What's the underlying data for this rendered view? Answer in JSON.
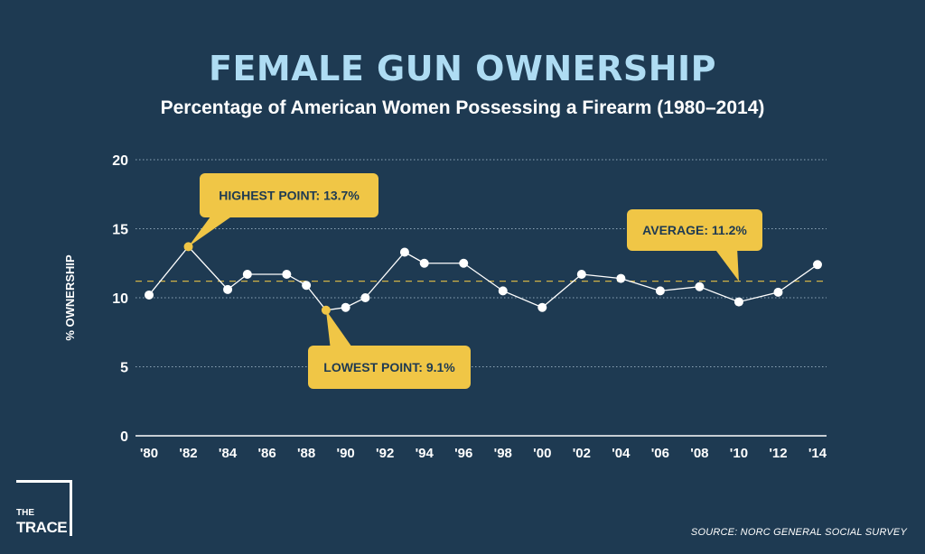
{
  "header": {
    "title": "FEMALE GUN OWNERSHIP",
    "subtitle": "Percentage of American Women Possessing a Firearm (1980–2014)"
  },
  "chart_data": {
    "type": "line",
    "ylabel": "% OWNERSHIP",
    "ylim": [
      0,
      20
    ],
    "yticks": [
      0,
      5,
      10,
      15,
      20
    ],
    "xlim": [
      1980,
      2014
    ],
    "xtick_values": [
      1980,
      1982,
      1984,
      1986,
      1988,
      1990,
      1992,
      1994,
      1996,
      1998,
      2000,
      2002,
      2004,
      2006,
      2008,
      2010,
      2012,
      2014
    ],
    "xtick_labels": [
      "'80",
      "'82",
      "'84",
      "'86",
      "'88",
      "'90",
      "'92",
      "'94",
      "'96",
      "'98",
      "'00",
      "'02",
      "'04",
      "'06",
      "'08",
      "'10",
      "'12",
      "'14"
    ],
    "grid": true,
    "series": [
      {
        "x": [
          1980,
          1982,
          1984,
          1985,
          1987,
          1988,
          1989,
          1990,
          1991,
          1993,
          1994,
          1996,
          1998,
          2000,
          2002,
          2004,
          2006,
          2008,
          2010,
          2012,
          2014
        ],
        "values": [
          10.2,
          13.7,
          10.6,
          11.7,
          11.7,
          10.9,
          9.1,
          9.3,
          10.0,
          13.3,
          12.5,
          12.5,
          10.5,
          9.3,
          11.7,
          11.4,
          10.5,
          10.8,
          9.7,
          10.4,
          12.4
        ]
      }
    ],
    "average": 11.2,
    "annotations": {
      "highest": {
        "x": 1982,
        "y": 13.7,
        "label": "HIGHEST POINT: 13.7%"
      },
      "lowest": {
        "x": 1989,
        "y": 9.1,
        "label": "LOWEST POINT: 9.1%"
      },
      "average": {
        "x": 2010,
        "y": 11.2,
        "label": "AVERAGE: 11.2%"
      }
    }
  },
  "footer": {
    "logo_the": "THE",
    "logo_trace": "TRACE",
    "source": "SOURCE: NORC GENERAL SOCIAL SURVEY"
  },
  "colors": {
    "background": "#1e3a52",
    "title": "#aedcf3",
    "highlight": "#f0c646",
    "line": "#ffffff",
    "grid": "#8fa6b8"
  }
}
